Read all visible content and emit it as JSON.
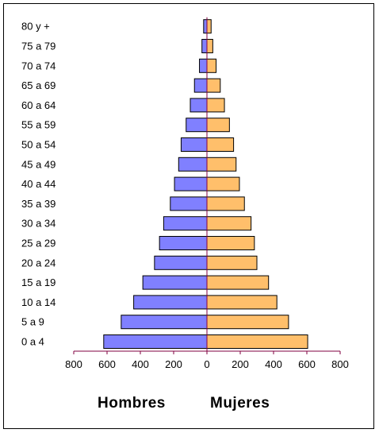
{
  "chart_data": {
    "type": "bar",
    "subtype": "population-pyramid",
    "categories": [
      "0 a 4",
      "5 a 9",
      "10 a 14",
      "15 a 19",
      "20 a 24",
      "25 a 29",
      "30 a 34",
      "35 a 39",
      "40 a 44",
      "45 a 49",
      "50 a 54",
      "55 a 59",
      "60 a 64",
      "65 a 69",
      "70 a 74",
      "75 a 79",
      "80 y +"
    ],
    "series": [
      {
        "name": "Hombres",
        "side": "left",
        "color": "#8080ff",
        "values": [
          620,
          515,
          440,
          385,
          315,
          285,
          260,
          220,
          195,
          170,
          155,
          125,
          100,
          75,
          45,
          30,
          20
        ]
      },
      {
        "name": "Mujeres",
        "side": "right",
        "color": "#ffbf6b",
        "values": [
          605,
          490,
          420,
          370,
          300,
          285,
          265,
          225,
          195,
          175,
          160,
          135,
          105,
          80,
          55,
          35,
          25
        ]
      }
    ],
    "xticks": [
      "800",
      "600",
      "400",
      "200",
      "0",
      "200",
      "400",
      "600",
      "800"
    ],
    "xlim": [
      -800,
      800
    ],
    "legend_placement": "bottom",
    "grid": false,
    "colors": {
      "axis": "#800040",
      "bar_border": "#000000"
    }
  },
  "legend": {
    "left_label": "Hombres",
    "right_label": "Mujeres"
  }
}
